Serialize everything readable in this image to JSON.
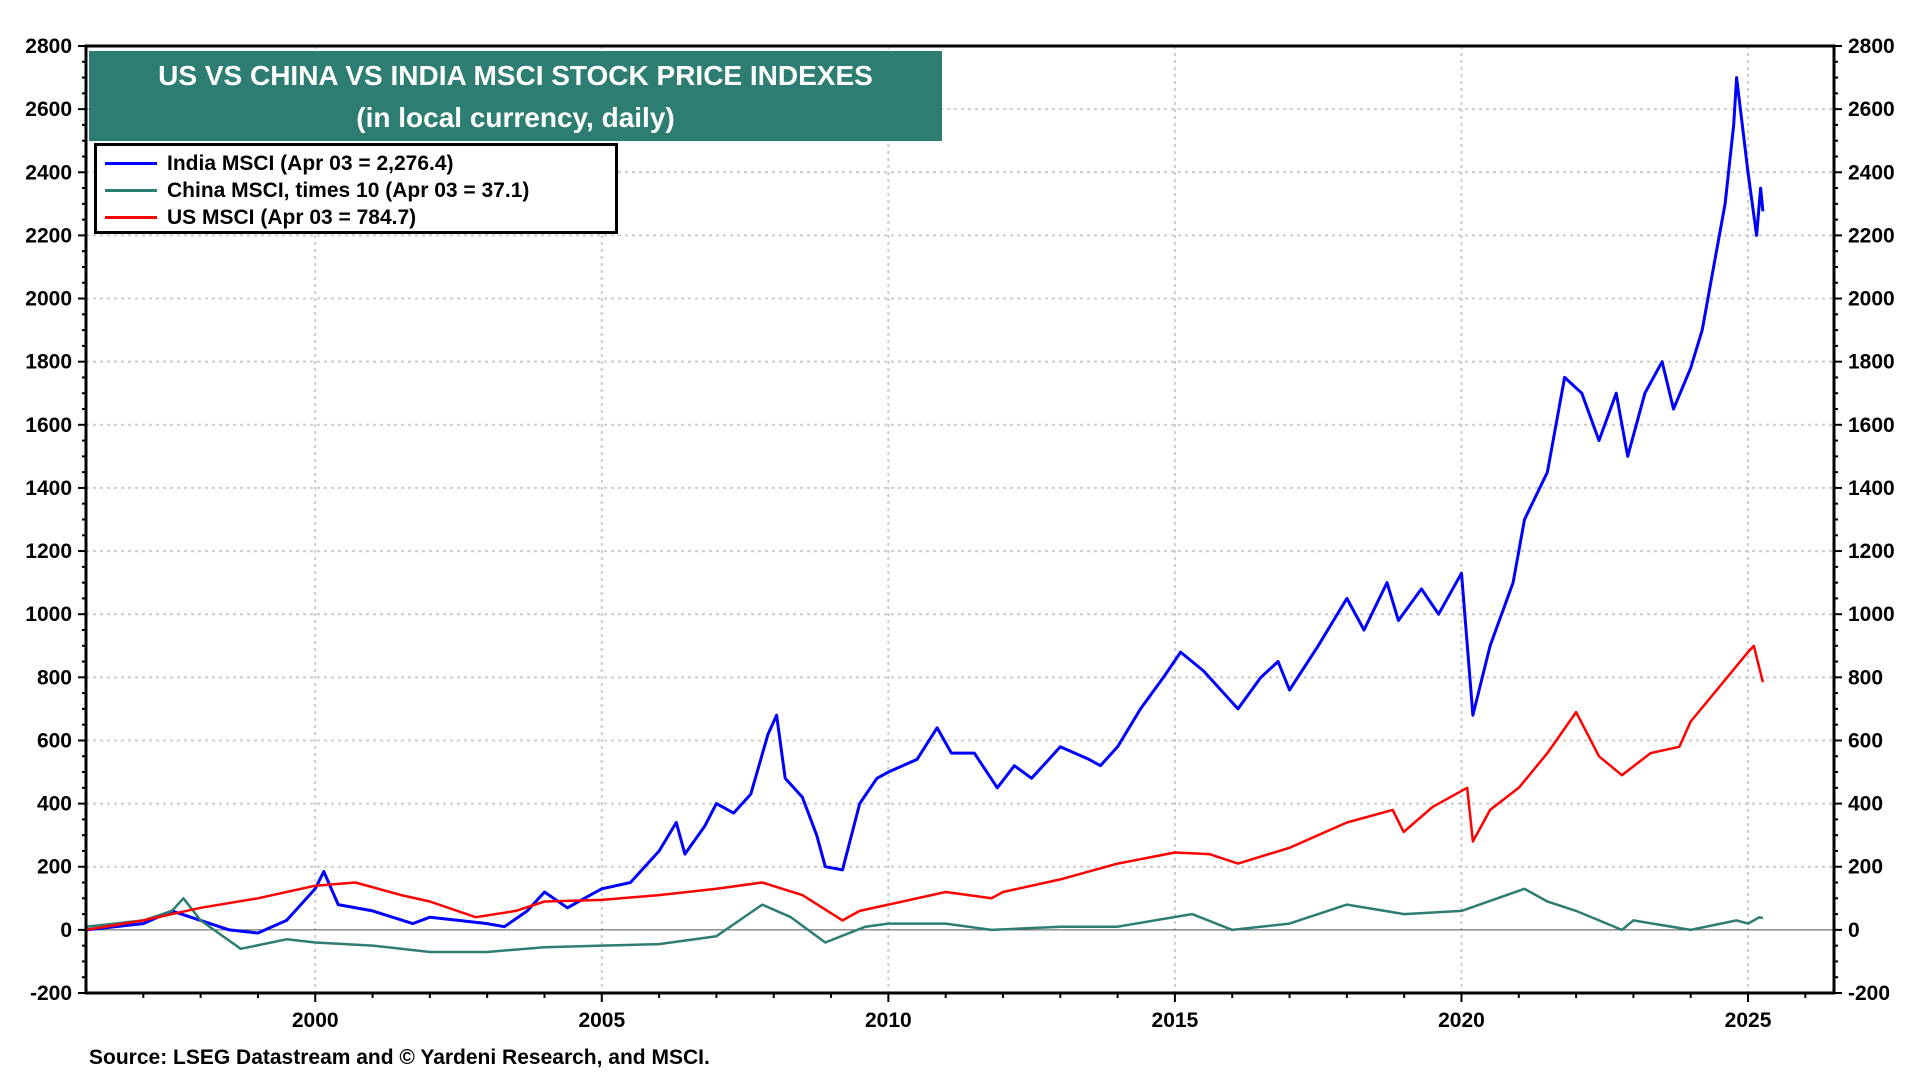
{
  "chart_data": {
    "type": "line",
    "title": "US VS CHINA VS INDIA MSCI STOCK PRICE INDEXES",
    "subtitle": "(in local currency, daily)",
    "xlim": [
      1996,
      2026.5
    ],
    "ylim": [
      -200,
      2800
    ],
    "yticks": [
      -200,
      0,
      200,
      400,
      600,
      800,
      1000,
      1200,
      1400,
      1600,
      1800,
      2000,
      2200,
      2400,
      2600,
      2800
    ],
    "xticks": [
      2000,
      2005,
      2010,
      2015,
      2020,
      2025
    ],
    "grid": true,
    "legend_placement": "top-left",
    "series": [
      {
        "name": "India MSCI (Apr 03 = 2,276.4)",
        "color": "#0000ff",
        "points": [
          [
            1996,
            0
          ],
          [
            1996.5,
            10
          ],
          [
            1997,
            20
          ],
          [
            1997.5,
            60
          ],
          [
            1998,
            30
          ],
          [
            1998.5,
            0
          ],
          [
            1999,
            -10
          ],
          [
            1999.5,
            30
          ],
          [
            2000,
            130
          ],
          [
            2000.15,
            185
          ],
          [
            2000.4,
            80
          ],
          [
            2001,
            60
          ],
          [
            2001.7,
            20
          ],
          [
            2002,
            40
          ],
          [
            2002.5,
            30
          ],
          [
            2003,
            20
          ],
          [
            2003.3,
            10
          ],
          [
            2003.7,
            60
          ],
          [
            2004,
            120
          ],
          [
            2004.4,
            70
          ],
          [
            2004.8,
            110
          ],
          [
            2005,
            130
          ],
          [
            2005.5,
            150
          ],
          [
            2006,
            250
          ],
          [
            2006.3,
            340
          ],
          [
            2006.45,
            240
          ],
          [
            2006.8,
            330
          ],
          [
            2007,
            400
          ],
          [
            2007.3,
            370
          ],
          [
            2007.6,
            430
          ],
          [
            2007.9,
            620
          ],
          [
            2008.05,
            680
          ],
          [
            2008.2,
            480
          ],
          [
            2008.5,
            420
          ],
          [
            2008.75,
            300
          ],
          [
            2008.9,
            200
          ],
          [
            2009.2,
            190
          ],
          [
            2009.5,
            400
          ],
          [
            2009.8,
            480
          ],
          [
            2010,
            500
          ],
          [
            2010.5,
            540
          ],
          [
            2010.85,
            640
          ],
          [
            2011.1,
            560
          ],
          [
            2011.5,
            560
          ],
          [
            2011.9,
            450
          ],
          [
            2012.2,
            520
          ],
          [
            2012.5,
            480
          ],
          [
            2013,
            580
          ],
          [
            2013.5,
            540
          ],
          [
            2013.7,
            520
          ],
          [
            2014,
            580
          ],
          [
            2014.4,
            700
          ],
          [
            2014.8,
            800
          ],
          [
            2015.1,
            880
          ],
          [
            2015.5,
            820
          ],
          [
            2016.1,
            700
          ],
          [
            2016.5,
            800
          ],
          [
            2016.8,
            850
          ],
          [
            2017,
            760
          ],
          [
            2017.5,
            900
          ],
          [
            2018,
            1050
          ],
          [
            2018.3,
            950
          ],
          [
            2018.7,
            1100
          ],
          [
            2018.9,
            980
          ],
          [
            2019.3,
            1080
          ],
          [
            2019.6,
            1000
          ],
          [
            2020,
            1130
          ],
          [
            2020.2,
            680
          ],
          [
            2020.5,
            900
          ],
          [
            2020.9,
            1100
          ],
          [
            2021.1,
            1300
          ],
          [
            2021.5,
            1450
          ],
          [
            2021.8,
            1750
          ],
          [
            2022.1,
            1700
          ],
          [
            2022.4,
            1550
          ],
          [
            2022.7,
            1700
          ],
          [
            2022.9,
            1500
          ],
          [
            2023.2,
            1700
          ],
          [
            2023.5,
            1800
          ],
          [
            2023.7,
            1650
          ],
          [
            2024,
            1780
          ],
          [
            2024.2,
            1900
          ],
          [
            2024.4,
            2100
          ],
          [
            2024.6,
            2300
          ],
          [
            2024.75,
            2550
          ],
          [
            2024.8,
            2700
          ],
          [
            2025,
            2400
          ],
          [
            2025.15,
            2200
          ],
          [
            2025.22,
            2350
          ],
          [
            2025.26,
            2276.4
          ]
        ]
      },
      {
        "name": "China MSCI, times 10 (Apr 03 = 37.1)",
        "color": "#2e7d72",
        "points": [
          [
            1996,
            10
          ],
          [
            1997,
            30
          ],
          [
            1997.5,
            60
          ],
          [
            1997.7,
            100
          ],
          [
            1998,
            30
          ],
          [
            1998.7,
            -60
          ],
          [
            1999.5,
            -30
          ],
          [
            2000,
            -40
          ],
          [
            2001,
            -50
          ],
          [
            2002,
            -70
          ],
          [
            2003,
            -70
          ],
          [
            2004,
            -55
          ],
          [
            2005,
            -50
          ],
          [
            2006,
            -45
          ],
          [
            2007,
            -20
          ],
          [
            2007.8,
            80
          ],
          [
            2008.3,
            40
          ],
          [
            2008.9,
            -40
          ],
          [
            2009.6,
            10
          ],
          [
            2010,
            20
          ],
          [
            2011,
            20
          ],
          [
            2011.8,
            0
          ],
          [
            2013,
            10
          ],
          [
            2014,
            10
          ],
          [
            2015.3,
            50
          ],
          [
            2016,
            0
          ],
          [
            2017,
            20
          ],
          [
            2018,
            80
          ],
          [
            2019,
            50
          ],
          [
            2020,
            60
          ],
          [
            2021.1,
            130
          ],
          [
            2021.5,
            90
          ],
          [
            2022,
            60
          ],
          [
            2022.8,
            0
          ],
          [
            2023,
            30
          ],
          [
            2024,
            0
          ],
          [
            2024.8,
            30
          ],
          [
            2025,
            20
          ],
          [
            2025.2,
            40
          ],
          [
            2025.26,
            37.1
          ]
        ]
      },
      {
        "name": "US MSCI (Apr 03 = 784.7)",
        "color": "#ff0000",
        "points": [
          [
            1996,
            0
          ],
          [
            1997,
            30
          ],
          [
            1998,
            70
          ],
          [
            1999,
            100
          ],
          [
            2000,
            140
          ],
          [
            2000.7,
            150
          ],
          [
            2001.5,
            110
          ],
          [
            2002,
            90
          ],
          [
            2002.8,
            40
          ],
          [
            2003.5,
            60
          ],
          [
            2004,
            90
          ],
          [
            2005,
            95
          ],
          [
            2006,
            110
          ],
          [
            2007,
            130
          ],
          [
            2007.8,
            150
          ],
          [
            2008.5,
            110
          ],
          [
            2009.2,
            30
          ],
          [
            2009.5,
            60
          ],
          [
            2010,
            80
          ],
          [
            2011,
            120
          ],
          [
            2011.8,
            100
          ],
          [
            2012,
            120
          ],
          [
            2013,
            160
          ],
          [
            2014,
            210
          ],
          [
            2015,
            245
          ],
          [
            2015.6,
            240
          ],
          [
            2016.1,
            210
          ],
          [
            2017,
            260
          ],
          [
            2018,
            340
          ],
          [
            2018.8,
            380
          ],
          [
            2018.99,
            310
          ],
          [
            2019.5,
            390
          ],
          [
            2020.1,
            450
          ],
          [
            2020.2,
            280
          ],
          [
            2020.5,
            380
          ],
          [
            2021,
            450
          ],
          [
            2021.5,
            560
          ],
          [
            2022,
            690
          ],
          [
            2022.4,
            550
          ],
          [
            2022.8,
            490
          ],
          [
            2023.3,
            560
          ],
          [
            2023.8,
            580
          ],
          [
            2024,
            660
          ],
          [
            2024.5,
            770
          ],
          [
            2025,
            880
          ],
          [
            2025.1,
            900
          ],
          [
            2025.26,
            784.7
          ]
        ]
      }
    ],
    "source": "Source: LSEG Datastream and © Yardeni Research, and MSCI."
  }
}
